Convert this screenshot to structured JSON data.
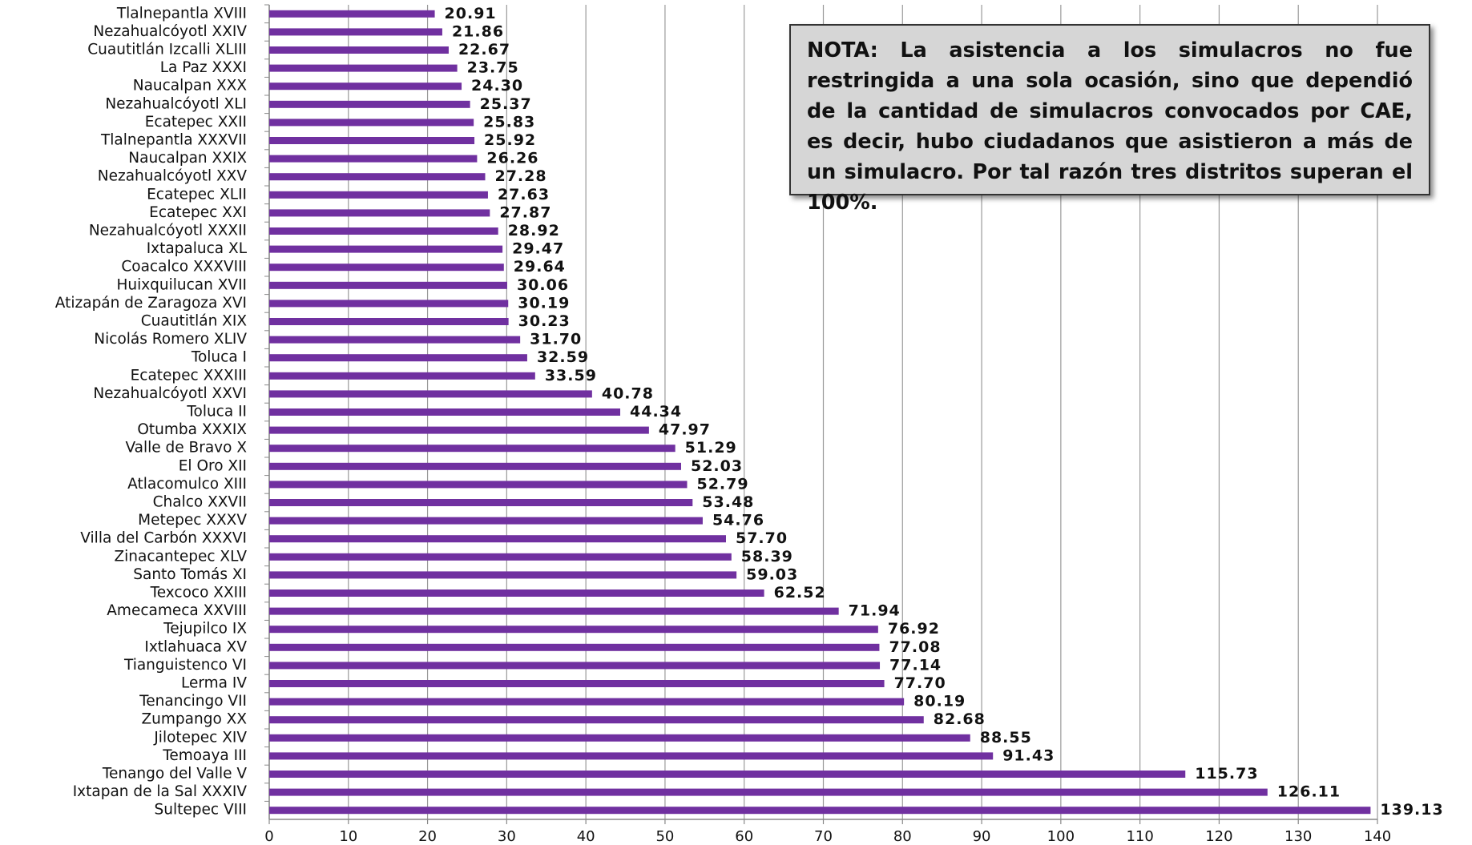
{
  "chart_data": {
    "type": "barh",
    "categories": [
      "Tlalnepantla XVIII",
      "Nezahualcóyotl XXIV",
      "Cuautitlán Izcalli XLIII",
      "La Paz XXXI",
      "Naucalpan XXX",
      "Nezahualcóyotl XLI",
      "Ecatepec XXII",
      "Tlalnepantla XXXVII",
      "Naucalpan XXIX",
      "Nezahualcóyotl XXV",
      "Ecatepec XLII",
      "Ecatepec XXI",
      "Nezahualcóyotl XXXII",
      "Ixtapaluca XL",
      "Coacalco XXXVIII",
      "Huixquilucan XVII",
      "Atizapán de Zaragoza XVI",
      "Cuautitlán XIX",
      "Nicolás Romero XLIV",
      "Toluca I",
      "Ecatepec XXXIII",
      "Nezahualcóyotl XXVI",
      "Toluca II",
      "Otumba XXXIX",
      "Valle de Bravo X",
      "El Oro XII",
      "Atlacomulco XIII",
      "Chalco XXVII",
      "Metepec XXXV",
      "Villa del Carbón XXXVI",
      "Zinacantepec XLV",
      "Santo Tomás XI",
      "Texcoco XXIII",
      "Amecameca XXVIII",
      "Tejupilco IX",
      "Ixtlahuaca XV",
      "Tianguistenco VI",
      "Lerma IV",
      "Tenancingo VII",
      "Zumpango XX",
      "Jilotepec XIV",
      "Temoaya III",
      "Tenango del Valle V",
      "Ixtapan de la Sal XXXIV",
      "Sultepec VIII"
    ],
    "values": [
      20.91,
      21.86,
      22.67,
      23.75,
      24.3,
      25.37,
      25.83,
      25.92,
      26.26,
      27.28,
      27.63,
      27.87,
      28.92,
      29.47,
      29.64,
      30.06,
      30.19,
      30.23,
      31.7,
      32.59,
      33.59,
      40.78,
      44.34,
      47.97,
      51.29,
      52.03,
      52.79,
      53.48,
      54.76,
      57.7,
      58.39,
      59.03,
      62.52,
      71.94,
      76.92,
      77.08,
      77.14,
      77.7,
      80.19,
      82.68,
      88.55,
      91.43,
      115.73,
      126.11,
      139.13
    ],
    "value_labels": [
      "20.91",
      "21.86",
      "22.67",
      "23.75",
      "24.30",
      "25.37",
      "25.83",
      "25.92",
      "26.26",
      "27.28",
      "27.63",
      "27.87",
      "28.92",
      "29.47",
      "29.64",
      "30.06",
      "30.19",
      "30.23",
      "31.70",
      "32.59",
      "33.59",
      "40.78",
      "44.34",
      "47.97",
      "51.29",
      "52.03",
      "52.79",
      "53.48",
      "54.76",
      "57.70",
      "58.39",
      "59.03",
      "62.52",
      "71.94",
      "76.92",
      "77.08",
      "77.14",
      "77.70",
      "80.19",
      "82.68",
      "88.55",
      "91.43",
      "115.73",
      "126.11",
      "139.13"
    ],
    "color": "#7030a0",
    "xlim": [
      0,
      140
    ],
    "xticks": [
      0,
      10,
      20,
      30,
      40,
      50,
      60,
      70,
      80,
      90,
      100,
      110,
      120,
      130,
      140
    ],
    "grid": true,
    "annotation": "NOTA: La asistencia a los simulacros no fue restringida a una sola ocasión, sino que dependió de la cantidad de simulacros convocados por CAE, es decir, hubo ciudadanos que asistieron a más de un simulacro. Por tal razón tres distritos superan el 100%."
  }
}
